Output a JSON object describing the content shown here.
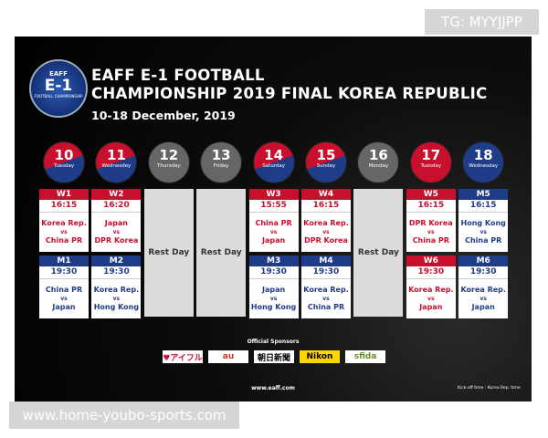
{
  "watermark_top": "TG: MYYJJPP",
  "watermark_bottom": "www.home-youbo-sports.com",
  "logo": {
    "org": "EAFF",
    "event": "E-1",
    "sub": "FOOTBALL CHAMPIONSHIP"
  },
  "header": {
    "line1": "EAFF E-1 FOOTBALL",
    "line2": "CHAMPIONSHIP 2019 FINAL KOREA REPUBLIC",
    "dates": "10-18 December, 2019"
  },
  "schedule": [
    {
      "date": "10",
      "weekday": "Tuesday",
      "circle": "split",
      "matches": [
        {
          "code": "W1",
          "time": "16:15",
          "home": "Korea Rep.",
          "vs": "vs",
          "away": "China PR",
          "color": "#c8102e"
        },
        {
          "code": "M1",
          "time": "19:30",
          "home": "China PR",
          "vs": "vs",
          "away": "Japan",
          "color": "#1f3c88"
        }
      ]
    },
    {
      "date": "11",
      "weekday": "Wednesday",
      "circle": "split",
      "matches": [
        {
          "code": "W2",
          "time": "16:20",
          "home": "Japan",
          "vs": "vs",
          "away": "DPR Korea",
          "color": "#c8102e"
        },
        {
          "code": "M2",
          "time": "19:30",
          "home": "Korea Rep.",
          "vs": "vs",
          "away": "Hong Kong",
          "color": "#1f3c88"
        }
      ]
    },
    {
      "date": "12",
      "weekday": "Thursday",
      "circle": "gray",
      "rest": "Rest Day"
    },
    {
      "date": "13",
      "weekday": "Friday",
      "circle": "gray",
      "rest": "Rest Day"
    },
    {
      "date": "14",
      "weekday": "Saturday",
      "circle": "split",
      "matches": [
        {
          "code": "W3",
          "time": "15:55",
          "home": "China PR",
          "vs": "vs",
          "away": "Japan",
          "color": "#c8102e"
        },
        {
          "code": "M3",
          "time": "19:30",
          "home": "Japan",
          "vs": "vs",
          "away": "Hong Kong",
          "color": "#1f3c88"
        }
      ]
    },
    {
      "date": "15",
      "weekday": "Sunday",
      "circle": "split",
      "matches": [
        {
          "code": "W4",
          "time": "16:15",
          "home": "Korea Rep.",
          "vs": "vs",
          "away": "DPR Korea",
          "color": "#c8102e"
        },
        {
          "code": "M4",
          "time": "19:30",
          "home": "Korea Rep.",
          "vs": "vs",
          "away": "China PR",
          "color": "#1f3c88"
        }
      ]
    },
    {
      "date": "16",
      "weekday": "Monday",
      "circle": "gray",
      "rest": "Rest Day"
    },
    {
      "date": "17",
      "weekday": "Tuesday",
      "circle": "red",
      "matches": [
        {
          "code": "W5",
          "time": "16:15",
          "home": "DPR Korea",
          "vs": "vs",
          "away": "China PR",
          "color": "#c8102e"
        },
        {
          "code": "W6",
          "time": "19:30",
          "home": "Korea Rep.",
          "vs": "vs",
          "away": "Japan",
          "color": "#c8102e"
        }
      ]
    },
    {
      "date": "18",
      "weekday": "Wednesday",
      "circle": "blue",
      "matches": [
        {
          "code": "M5",
          "time": "16:15",
          "home": "Hong Kong",
          "vs": "vs",
          "away": "China PR",
          "color": "#1f3c88"
        },
        {
          "code": "M6",
          "time": "19:30",
          "home": "Korea Rep.",
          "vs": "vs",
          "away": "Japan",
          "color": "#1f3c88"
        }
      ]
    }
  ],
  "sponsors": {
    "label": "Official Sponsors",
    "items": [
      "♥アイフル",
      "au",
      "朝日新聞",
      "Nikon",
      "sfida"
    ]
  },
  "footer": {
    "site": "www.eaff.com",
    "note": "Kick-off time : Korea Rep. time"
  }
}
